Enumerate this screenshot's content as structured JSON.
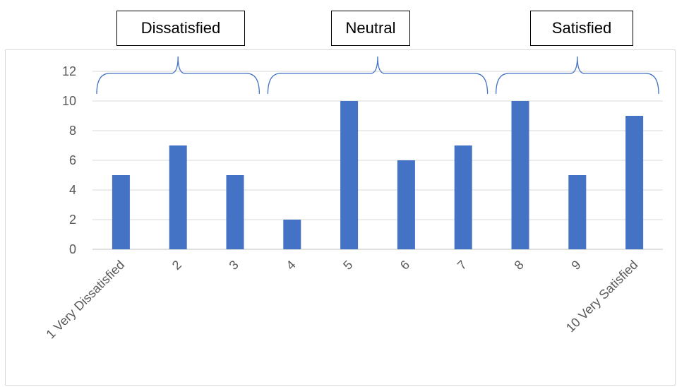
{
  "chart_data": {
    "type": "bar",
    "categories": [
      "1 Very Dissatisfied",
      "2",
      "3",
      "4",
      "5",
      "6",
      "7",
      "8",
      "9",
      "10 Very Satisfied"
    ],
    "values": [
      5,
      7,
      5,
      2,
      10,
      6,
      7,
      10,
      5,
      9
    ],
    "ylim": [
      0,
      12
    ],
    "yticks": [
      0,
      2,
      4,
      6,
      8,
      10,
      12
    ],
    "grid": true,
    "legend": "none",
    "bar_color": "#4472c4",
    "annotations": [
      {
        "label": "Dissatisfied",
        "span": [
          "1 Very Dissatisfied",
          "3"
        ]
      },
      {
        "label": "Neutral",
        "span": [
          "4",
          "7"
        ]
      },
      {
        "label": "Satisfied",
        "span": [
          "8",
          "10 Very Satisfied"
        ]
      }
    ]
  }
}
